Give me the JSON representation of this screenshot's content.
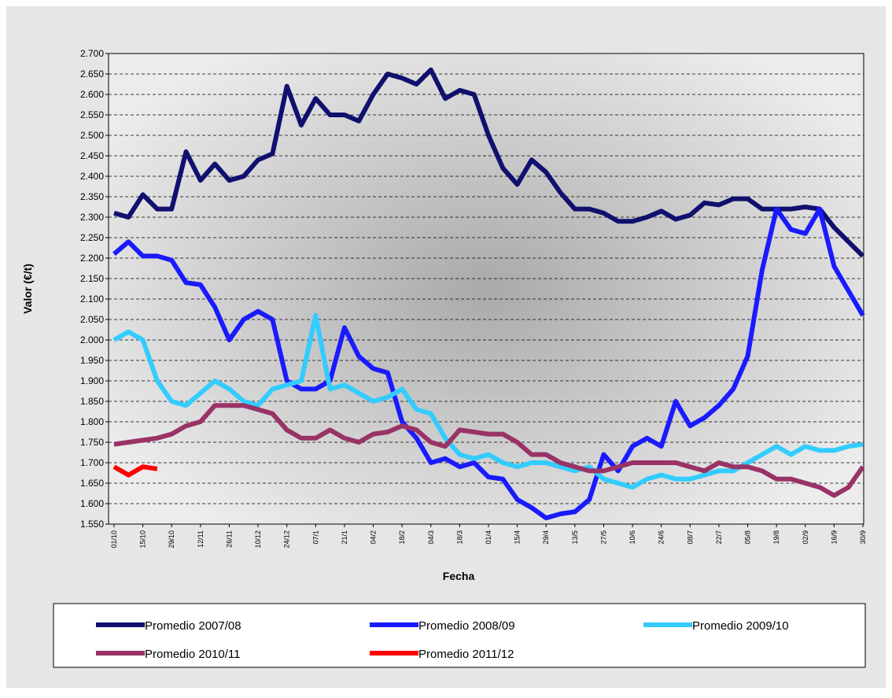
{
  "chart_data": {
    "type": "line",
    "y_label": "Valor (€/t)",
    "x_label": "Fecha",
    "grid": true,
    "categories": [
      "01/10",
      null,
      "15/10",
      null,
      "29/10",
      null,
      "12/11",
      null,
      "26/11",
      null,
      "10/12",
      null,
      "24/12",
      null,
      "07/1",
      null,
      "21/1",
      null,
      "04/2",
      null,
      "18/2",
      null,
      "04/3",
      null,
      "18/3",
      null,
      "01/4",
      null,
      "15/4",
      null,
      "29/4",
      null,
      "13/5",
      null,
      "27/5",
      null,
      "10/6",
      null,
      "24/6",
      null,
      "08/7",
      null,
      "22/7",
      null,
      "05/8",
      null,
      "19/8",
      null,
      "02/9",
      null,
      "16/9",
      null,
      "30/9"
    ],
    "ylim": [
      1550,
      2700
    ],
    "yticks": [
      {
        "value": 1550,
        "label": "1.550"
      },
      {
        "value": 1600,
        "label": "1.600"
      },
      {
        "value": 1650,
        "label": "1.650"
      },
      {
        "value": 1700,
        "label": "1.700"
      },
      {
        "value": 1750,
        "label": "1.750"
      },
      {
        "value": 1800,
        "label": "1.800"
      },
      {
        "value": 1850,
        "label": "1.850"
      },
      {
        "value": 1900,
        "label": "1.900"
      },
      {
        "value": 1950,
        "label": "1.950"
      },
      {
        "value": 2000,
        "label": "2.000"
      },
      {
        "value": 2050,
        "label": "2.050"
      },
      {
        "value": 2100,
        "label": "2.100"
      },
      {
        "value": 2150,
        "label": "2.150"
      },
      {
        "value": 2200,
        "label": "2.200"
      },
      {
        "value": 2250,
        "label": "2.250"
      },
      {
        "value": 2300,
        "label": "2.300"
      },
      {
        "value": 2350,
        "label": "2.350"
      },
      {
        "value": 2400,
        "label": "2.400"
      },
      {
        "value": 2450,
        "label": "2.450"
      },
      {
        "value": 2500,
        "label": "2.500"
      },
      {
        "value": 2550,
        "label": "2.550"
      },
      {
        "value": 2600,
        "label": "2.600"
      },
      {
        "value": 2650,
        "label": "2.650"
      },
      {
        "value": 2700,
        "label": "2.700"
      }
    ],
    "series": [
      {
        "name": "Promedio 2007/08",
        "color": "#10106e",
        "values": [
          2310,
          2300,
          2355,
          2320,
          2320,
          2460,
          2390,
          2430,
          2390,
          2400,
          2440,
          2455,
          2620,
          2525,
          2590,
          2550,
          2550,
          2535,
          2600,
          2650,
          2640,
          2625,
          2660,
          2590,
          2610,
          2600,
          2500,
          2420,
          2380,
          2440,
          2410,
          2360,
          2320,
          2320,
          2310,
          2290,
          2290,
          2300,
          2315,
          2295,
          2305,
          2335,
          2330,
          2345,
          2345,
          2320,
          2320,
          2320,
          2325,
          2320,
          2275,
          2240,
          2205
        ]
      },
      {
        "name": "Promedio 2008/09",
        "color": "#1a1aff",
        "values": [
          2210,
          2240,
          2205,
          2205,
          2195,
          2140,
          2135,
          2080,
          2000,
          2050,
          2070,
          2050,
          1900,
          1880,
          1880,
          1900,
          2030,
          1960,
          1930,
          1920,
          1800,
          1760,
          1700,
          1710,
          1690,
          1700,
          1665,
          1660,
          1610,
          1590,
          1565,
          1575,
          1580,
          1610,
          1720,
          1680,
          1740,
          1760,
          1740,
          1850,
          1790,
          1810,
          1840,
          1880,
          1960,
          2170,
          2320,
          2270,
          2260,
          2320,
          2180,
          2120,
          2060
        ]
      },
      {
        "name": "Promedio 2009/10",
        "color": "#33ccff",
        "values": [
          2000,
          2020,
          2000,
          1900,
          1850,
          1840,
          1870,
          1900,
          1880,
          1850,
          1840,
          1880,
          1890,
          1900,
          2060,
          1880,
          1890,
          1870,
          1850,
          1860,
          1880,
          1830,
          1820,
          1760,
          1720,
          1710,
          1720,
          1700,
          1690,
          1700,
          1700,
          1690,
          1680,
          1690,
          1660,
          1650,
          1640,
          1660,
          1670,
          1660,
          1660,
          1670,
          1680,
          1680,
          1700,
          1720,
          1740,
          1720,
          1740,
          1730,
          1730,
          1740,
          1745
        ]
      },
      {
        "name": "Promedio 2010/11",
        "color": "#993366",
        "values": [
          1745,
          1750,
          1755,
          1760,
          1770,
          1790,
          1800,
          1840,
          1840,
          1840,
          1830,
          1820,
          1780,
          1760,
          1760,
          1780,
          1760,
          1750,
          1770,
          1775,
          1790,
          1780,
          1750,
          1740,
          1780,
          1775,
          1770,
          1770,
          1750,
          1720,
          1720,
          1700,
          1690,
          1680,
          1680,
          1690,
          1700,
          1700,
          1700,
          1700,
          1690,
          1680,
          1700,
          1690,
          1690,
          1680,
          1660,
          1660,
          1650,
          1640,
          1620,
          1640,
          1690
        ]
      },
      {
        "name": "Promedio 2011/12",
        "color": "#ff0000",
        "values": [
          1690,
          1670,
          1690,
          1685,
          null,
          null,
          null,
          null,
          null,
          null,
          null,
          null,
          null,
          null,
          null,
          null,
          null,
          null,
          null,
          null,
          null,
          null,
          null,
          null,
          null,
          null,
          null,
          null,
          null,
          null,
          null,
          null,
          null,
          null,
          null,
          null,
          null,
          null,
          null,
          null,
          null,
          null,
          null,
          null,
          null,
          null,
          null,
          null,
          null,
          null,
          null,
          null,
          null
        ]
      }
    ]
  }
}
